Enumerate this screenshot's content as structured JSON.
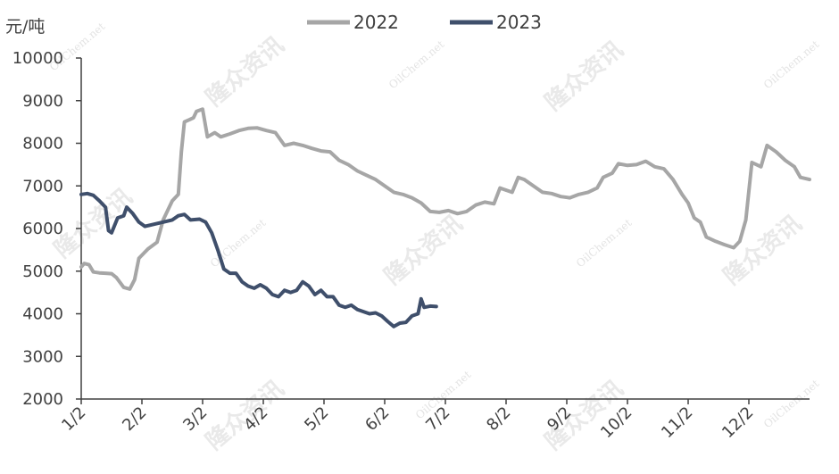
{
  "chart_data": {
    "type": "line",
    "unit_label": "元/吨",
    "ylim": [
      2000,
      10000
    ],
    "yticks": [
      "10000",
      "9000",
      "8000",
      "7000",
      "6000",
      "5000",
      "4000",
      "3000",
      "2000"
    ],
    "xlim": [
      1,
      13
    ],
    "xticks": [
      {
        "label": "1/2",
        "x": 1
      },
      {
        "label": "2/2",
        "x": 2
      },
      {
        "label": "3/2",
        "x": 3
      },
      {
        "label": "4/2",
        "x": 4
      },
      {
        "label": "5/2",
        "x": 5
      },
      {
        "label": "6/2",
        "x": 6
      },
      {
        "label": "7/2",
        "x": 7
      },
      {
        "label": "8/2",
        "x": 8
      },
      {
        "label": "9/2",
        "x": 9
      },
      {
        "label": "10/2",
        "x": 10
      },
      {
        "label": "11/2",
        "x": 11
      },
      {
        "label": "12/2",
        "x": 12
      }
    ],
    "legend_position": "top",
    "grid": false,
    "series": [
      {
        "name": "2022",
        "color": "#a6a6a6",
        "points": [
          [
            1.0,
            5100
          ],
          [
            1.05,
            5180
          ],
          [
            1.13,
            5150
          ],
          [
            1.2,
            4980
          ],
          [
            1.3,
            4960
          ],
          [
            1.4,
            4950
          ],
          [
            1.5,
            4940
          ],
          [
            1.58,
            4850
          ],
          [
            1.7,
            4620
          ],
          [
            1.8,
            4580
          ],
          [
            1.88,
            4800
          ],
          [
            1.95,
            5300
          ],
          [
            2.1,
            5520
          ],
          [
            2.25,
            5680
          ],
          [
            2.35,
            6200
          ],
          [
            2.5,
            6650
          ],
          [
            2.6,
            6800
          ],
          [
            2.65,
            7800
          ],
          [
            2.7,
            8500
          ],
          [
            2.78,
            8550
          ],
          [
            2.85,
            8600
          ],
          [
            2.9,
            8750
          ],
          [
            3.0,
            8800
          ],
          [
            3.08,
            8150
          ],
          [
            3.2,
            8250
          ],
          [
            3.3,
            8150
          ],
          [
            3.45,
            8220
          ],
          [
            3.6,
            8300
          ],
          [
            3.75,
            8350
          ],
          [
            3.9,
            8360
          ],
          [
            4.05,
            8300
          ],
          [
            4.2,
            8250
          ],
          [
            4.35,
            7950
          ],
          [
            4.5,
            8000
          ],
          [
            4.65,
            7950
          ],
          [
            4.8,
            7880
          ],
          [
            4.95,
            7820
          ],
          [
            5.1,
            7800
          ],
          [
            5.25,
            7600
          ],
          [
            5.4,
            7500
          ],
          [
            5.55,
            7350
          ],
          [
            5.7,
            7250
          ],
          [
            5.85,
            7150
          ],
          [
            6.0,
            7000
          ],
          [
            6.15,
            6850
          ],
          [
            6.3,
            6800
          ],
          [
            6.45,
            6720
          ],
          [
            6.6,
            6600
          ],
          [
            6.75,
            6400
          ],
          [
            6.9,
            6380
          ],
          [
            7.05,
            6420
          ],
          [
            7.2,
            6350
          ],
          [
            7.35,
            6400
          ],
          [
            7.5,
            6550
          ],
          [
            7.65,
            6620
          ],
          [
            7.8,
            6580
          ],
          [
            7.9,
            6950
          ],
          [
            8.0,
            6900
          ],
          [
            8.1,
            6850
          ],
          [
            8.2,
            7200
          ],
          [
            8.3,
            7150
          ],
          [
            8.45,
            7000
          ],
          [
            8.6,
            6850
          ],
          [
            8.75,
            6820
          ],
          [
            8.9,
            6750
          ],
          [
            9.05,
            6720
          ],
          [
            9.2,
            6800
          ],
          [
            9.35,
            6850
          ],
          [
            9.5,
            6950
          ],
          [
            9.6,
            7200
          ],
          [
            9.75,
            7300
          ],
          [
            9.85,
            7520
          ],
          [
            10.0,
            7480
          ],
          [
            10.15,
            7500
          ],
          [
            10.3,
            7580
          ],
          [
            10.45,
            7450
          ],
          [
            10.6,
            7400
          ],
          [
            10.75,
            7150
          ],
          [
            10.9,
            6800
          ],
          [
            11.0,
            6600
          ],
          [
            11.1,
            6250
          ],
          [
            11.2,
            6150
          ],
          [
            11.3,
            5800
          ],
          [
            11.45,
            5700
          ],
          [
            11.6,
            5620
          ],
          [
            11.75,
            5550
          ],
          [
            11.85,
            5700
          ],
          [
            11.95,
            6200
          ],
          [
            12.05,
            7550
          ],
          [
            12.2,
            7450
          ],
          [
            12.3,
            7950
          ],
          [
            12.45,
            7800
          ],
          [
            12.6,
            7600
          ],
          [
            12.75,
            7450
          ],
          [
            12.85,
            7200
          ],
          [
            13.0,
            7150
          ]
        ]
      },
      {
        "name": "2023",
        "color": "#3f4f6b",
        "points": [
          [
            1.0,
            6800
          ],
          [
            1.1,
            6820
          ],
          [
            1.2,
            6780
          ],
          [
            1.3,
            6650
          ],
          [
            1.4,
            6500
          ],
          [
            1.45,
            5950
          ],
          [
            1.5,
            5900
          ],
          [
            1.6,
            6250
          ],
          [
            1.7,
            6300
          ],
          [
            1.75,
            6500
          ],
          [
            1.85,
            6350
          ],
          [
            1.95,
            6150
          ],
          [
            2.05,
            6050
          ],
          [
            2.2,
            6100
          ],
          [
            2.35,
            6150
          ],
          [
            2.5,
            6200
          ],
          [
            2.6,
            6300
          ],
          [
            2.7,
            6330
          ],
          [
            2.8,
            6200
          ],
          [
            2.95,
            6220
          ],
          [
            3.05,
            6150
          ],
          [
            3.15,
            5900
          ],
          [
            3.25,
            5500
          ],
          [
            3.35,
            5050
          ],
          [
            3.45,
            4950
          ],
          [
            3.55,
            4950
          ],
          [
            3.65,
            4750
          ],
          [
            3.75,
            4650
          ],
          [
            3.85,
            4600
          ],
          [
            3.95,
            4680
          ],
          [
            4.05,
            4600
          ],
          [
            4.15,
            4450
          ],
          [
            4.25,
            4400
          ],
          [
            4.35,
            4550
          ],
          [
            4.45,
            4500
          ],
          [
            4.55,
            4550
          ],
          [
            4.65,
            4750
          ],
          [
            4.75,
            4650
          ],
          [
            4.85,
            4450
          ],
          [
            4.95,
            4550
          ],
          [
            5.05,
            4400
          ],
          [
            5.15,
            4400
          ],
          [
            5.25,
            4200
          ],
          [
            5.35,
            4150
          ],
          [
            5.45,
            4200
          ],
          [
            5.55,
            4100
          ],
          [
            5.65,
            4050
          ],
          [
            5.75,
            4000
          ],
          [
            5.85,
            4020
          ],
          [
            5.95,
            3950
          ],
          [
            6.05,
            3820
          ],
          [
            6.15,
            3700
          ],
          [
            6.25,
            3780
          ],
          [
            6.35,
            3800
          ],
          [
            6.45,
            3950
          ],
          [
            6.55,
            4000
          ],
          [
            6.6,
            4350
          ],
          [
            6.65,
            4150
          ],
          [
            6.75,
            4180
          ],
          [
            6.85,
            4170
          ]
        ]
      }
    ]
  },
  "watermark": {
    "brand": "隆众资讯",
    "site": "OilChem.net"
  }
}
